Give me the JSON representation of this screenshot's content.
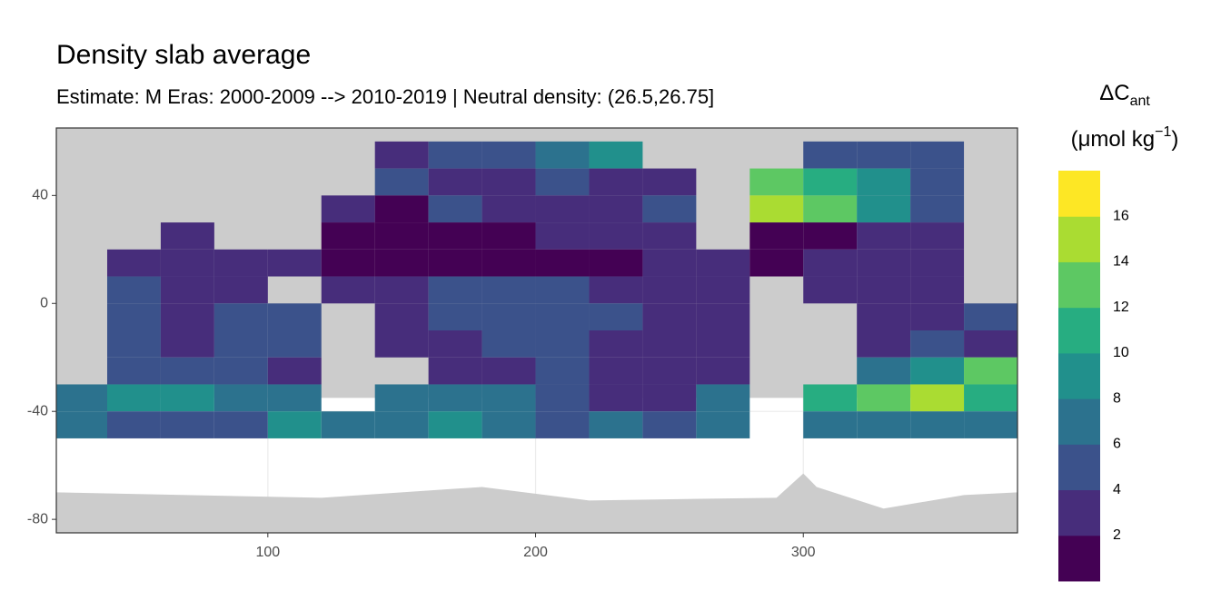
{
  "chart_data": {
    "type": "heatmap",
    "title": "Density slab average",
    "subtitle": "Estimate: M Eras: 2000-2009 --> 2010-2019 | Neutral density: (26.5,26.75]",
    "legend_title": {
      "main": "ΔC",
      "sub": "ant",
      "unit": "(μmol kg",
      "unit_sup": "−1",
      "unit_end": ")"
    },
    "xlim": [
      21,
      380
    ],
    "ylim": [
      -85,
      65
    ],
    "xticks": [
      100,
      200,
      300
    ],
    "yticks": [
      -80,
      -40,
      0,
      40
    ],
    "grid": true,
    "x": [
      30,
      50,
      70,
      90,
      110,
      130,
      150,
      170,
      190,
      210,
      230,
      250,
      270,
      290,
      310,
      330,
      350,
      370
    ],
    "y": [
      55,
      45,
      35,
      25,
      15,
      5,
      -5,
      -15,
      -25,
      -35,
      -45
    ],
    "values": [
      [
        null,
        null,
        null,
        null,
        null,
        null,
        3,
        4,
        5,
        6,
        8,
        null,
        null,
        null,
        5,
        4,
        5,
        null
      ],
      [
        null,
        null,
        null,
        null,
        null,
        null,
        4,
        3,
        3,
        5,
        3,
        3,
        null,
        12,
        10,
        8,
        5,
        null
      ],
      [
        null,
        null,
        null,
        null,
        null,
        2,
        1,
        4,
        3,
        2,
        3,
        4,
        null,
        14,
        12,
        8,
        5,
        null
      ],
      [
        null,
        null,
        3,
        null,
        null,
        1,
        1,
        1,
        1,
        2,
        2,
        3,
        null,
        1,
        1,
        2,
        3,
        null
      ],
      [
        null,
        3,
        3,
        3,
        2,
        1,
        1,
        1,
        1,
        1,
        1,
        2,
        3,
        1,
        2,
        2,
        3,
        null
      ],
      [
        null,
        4,
        3,
        3,
        null,
        2,
        3,
        5,
        5,
        4,
        3,
        2,
        2,
        null,
        3,
        2,
        3,
        null
      ],
      [
        null,
        4,
        3,
        4,
        4,
        null,
        3,
        4,
        4,
        5,
        4,
        3,
        3,
        null,
        null,
        2,
        3,
        4
      ],
      [
        null,
        4,
        3,
        4,
        4,
        null,
        3,
        3,
        4,
        4,
        3,
        2,
        3,
        null,
        null,
        3,
        4,
        3
      ],
      [
        null,
        5,
        4,
        4,
        3,
        null,
        null,
        3,
        3,
        4,
        3,
        2,
        2,
        null,
        null,
        6,
        8,
        12
      ],
      [
        6,
        8,
        8,
        7,
        6,
        null,
        6,
        6,
        7,
        5,
        2,
        3,
        6,
        null,
        10,
        12,
        14,
        10
      ],
      [
        6,
        5,
        5,
        5,
        8,
        6,
        6,
        8,
        6,
        5,
        6,
        5,
        6,
        null,
        6,
        6,
        6,
        6
      ]
    ],
    "land_color": "#cccccc",
    "colors": [
      "#440154",
      "#472d7b",
      "#3b528b",
      "#2c728e",
      "#21908c",
      "#27ad81",
      "#5dc863",
      "#aadc32",
      "#fde725"
    ],
    "legend_lim": [
      0,
      18
    ],
    "legend_breaks": [
      2,
      4,
      6,
      8,
      10,
      12,
      14,
      16
    ]
  }
}
